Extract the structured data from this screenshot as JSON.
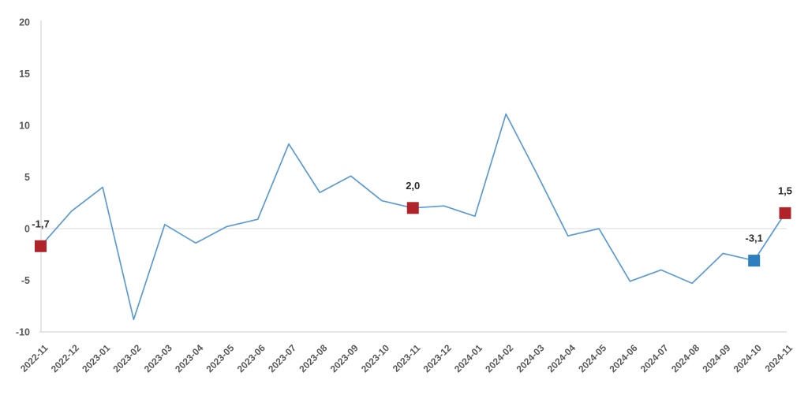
{
  "chart_data": {
    "type": "line",
    "title": "",
    "xlabel": "",
    "ylabel": "",
    "categories": [
      "2022-11",
      "2022-12",
      "2023-01",
      "2023-02",
      "2023-03",
      "2023-04",
      "2023-05",
      "2023-06",
      "2023-07",
      "2023-08",
      "2023-09",
      "2023-10",
      "2023-11",
      "2023-12",
      "2024-01",
      "2024-02",
      "2024-03",
      "2024-04",
      "2024-05",
      "2024-06",
      "2024-07",
      "2024-08",
      "2024-09",
      "2024-10",
      "2024-11"
    ],
    "values": [
      -1.7,
      1.7,
      4.0,
      -8.8,
      0.4,
      -1.4,
      0.2,
      0.9,
      8.2,
      3.5,
      5.1,
      2.7,
      2.0,
      2.2,
      1.2,
      11.1,
      5.3,
      -0.7,
      0.0,
      -5.1,
      -4.0,
      -5.3,
      -2.4,
      -3.1,
      1.5
    ],
    "ylim": [
      -10,
      20
    ],
    "yticks": [
      20,
      15,
      10,
      5,
      0,
      -5,
      -10
    ],
    "grid": "zero-line-only",
    "legend": "none",
    "decimal_separator": ",",
    "x_label_rotation_deg": -45,
    "highlighted_points": [
      {
        "index": 0,
        "category": "2022-11",
        "value": -1.7,
        "label": "-1,7",
        "marker_color": "#b02328"
      },
      {
        "index": 12,
        "category": "2023-11",
        "value": 2.0,
        "label": "2,0",
        "marker_color": "#b02328"
      },
      {
        "index": 23,
        "category": "2024-10",
        "value": -3.1,
        "label": "-3,1",
        "marker_color": "#2e7fbe"
      },
      {
        "index": 24,
        "category": "2024-11",
        "value": 1.5,
        "label": "1,5",
        "marker_color": "#b02328"
      }
    ],
    "colors": {
      "line": "#5b9bd5",
      "highlight_red": "#b02328",
      "highlight_blue": "#2e7fbe",
      "axis_line": "#d6d6d6",
      "zero_gridline": "#e0e0e0",
      "tick_label": "#595959",
      "value_label": "#2b2b2b",
      "background": "#ffffff"
    }
  }
}
